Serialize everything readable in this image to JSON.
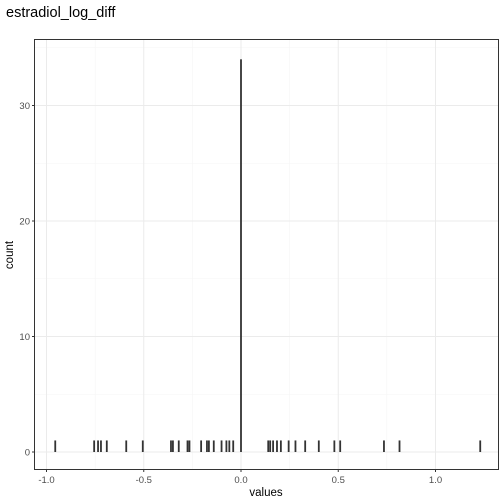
{
  "chart_data": {
    "type": "bar",
    "title": "estradiol_log_diff",
    "xlabel": "values",
    "ylabel": "count",
    "xlim": [
      -1.0,
      1.27
    ],
    "ylim": [
      0,
      35
    ],
    "x_ticks": [
      -1.0,
      -0.5,
      0.0,
      0.5,
      1.0
    ],
    "x_tick_labels": [
      "-1.0",
      "-0.5",
      "0.0",
      "0.5",
      "1.0"
    ],
    "y_ticks": [
      0,
      10,
      20,
      30
    ],
    "y_tick_labels": [
      "0",
      "10",
      "20",
      "30"
    ],
    "grid": true,
    "bars": [
      {
        "x": -0.955,
        "count": 1
      },
      {
        "x": -0.755,
        "count": 1
      },
      {
        "x": -0.735,
        "count": 1
      },
      {
        "x": -0.72,
        "count": 1
      },
      {
        "x": -0.69,
        "count": 1
      },
      {
        "x": -0.59,
        "count": 1
      },
      {
        "x": -0.505,
        "count": 1
      },
      {
        "x": -0.36,
        "count": 1
      },
      {
        "x": -0.35,
        "count": 1
      },
      {
        "x": -0.32,
        "count": 1
      },
      {
        "x": -0.275,
        "count": 1
      },
      {
        "x": -0.265,
        "count": 1
      },
      {
        "x": -0.205,
        "count": 1
      },
      {
        "x": -0.175,
        "count": 1
      },
      {
        "x": -0.165,
        "count": 1
      },
      {
        "x": -0.14,
        "count": 1
      },
      {
        "x": -0.1,
        "count": 1
      },
      {
        "x": -0.075,
        "count": 1
      },
      {
        "x": -0.06,
        "count": 1
      },
      {
        "x": -0.04,
        "count": 1
      },
      {
        "x": 0.0,
        "count": 34
      },
      {
        "x": 0.14,
        "count": 1
      },
      {
        "x": 0.15,
        "count": 1
      },
      {
        "x": 0.165,
        "count": 1
      },
      {
        "x": 0.185,
        "count": 1
      },
      {
        "x": 0.205,
        "count": 1
      },
      {
        "x": 0.245,
        "count": 1
      },
      {
        "x": 0.28,
        "count": 1
      },
      {
        "x": 0.33,
        "count": 1
      },
      {
        "x": 0.4,
        "count": 1
      },
      {
        "x": 0.48,
        "count": 1
      },
      {
        "x": 0.51,
        "count": 1
      },
      {
        "x": 0.735,
        "count": 1
      },
      {
        "x": 0.815,
        "count": 1
      },
      {
        "x": 1.23,
        "count": 1
      }
    ],
    "colors": {
      "bar": "#333333",
      "panel_border": "#333333",
      "grid_major": "#ebebeb",
      "grid_minor": "#f5f5f5",
      "tick_text": "#4d4d4d"
    }
  }
}
